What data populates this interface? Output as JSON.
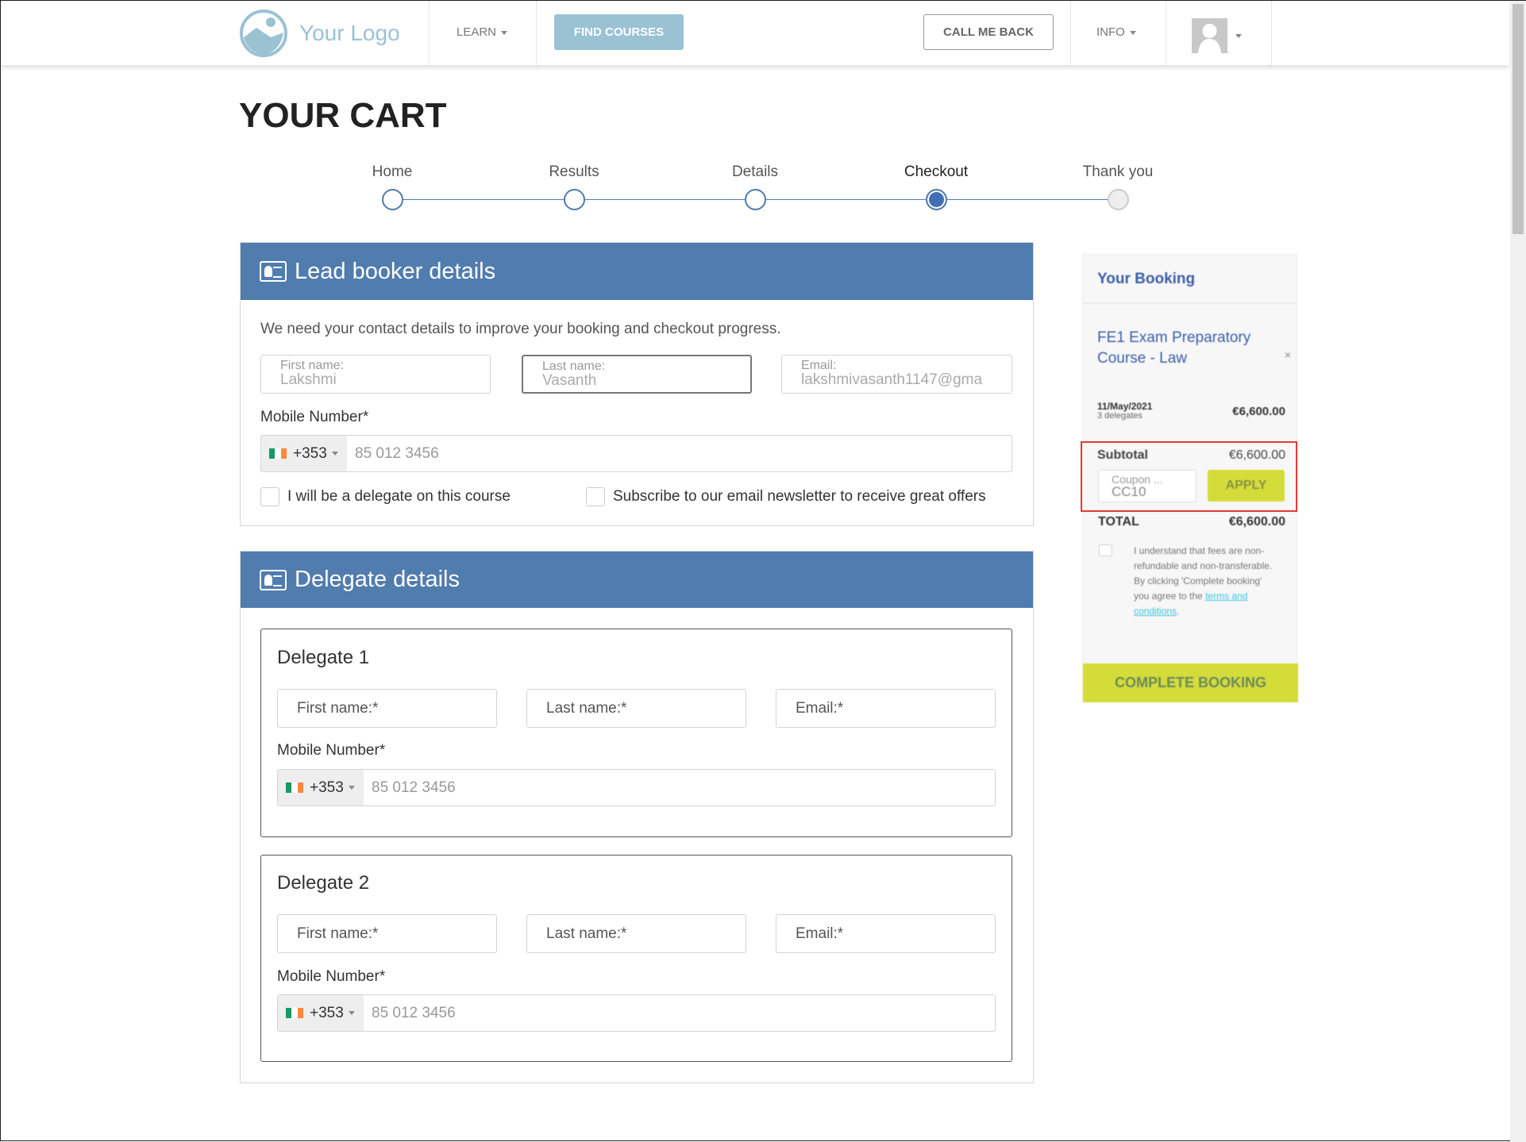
{
  "header": {
    "logo_text": "Your Logo",
    "learn": "LEARN",
    "find_courses": "FIND COURSES",
    "call_me_back": "CALL ME BACK",
    "info": "INFO"
  },
  "page_title": "YOUR CART",
  "steps": [
    {
      "label": "Home",
      "state": "done"
    },
    {
      "label": "Results",
      "state": "done"
    },
    {
      "label": "Details",
      "state": "done"
    },
    {
      "label": "Checkout",
      "state": "active"
    },
    {
      "label": "Thank you",
      "state": "pending"
    }
  ],
  "lead": {
    "title": "Lead booker details",
    "intro": "We need your contact details to improve your booking and checkout progress.",
    "first_label": "First name:",
    "first_value": "Lakshmi",
    "last_label": "Last name:",
    "last_value": "Vasanth",
    "email_label": "Email:",
    "email_value": "lakshmivasanth1147@gma",
    "mobile_label": "Mobile Number*",
    "country_code": "+353",
    "phone_placeholder": "85 012 3456",
    "delegate_check": "I will be a delegate on this course",
    "newsletter_check": "Subscribe to our email newsletter to receive great offers"
  },
  "delegates": {
    "title": "Delegate details",
    "items": [
      {
        "title": "Delegate 1",
        "first": "First name:*",
        "last": "Last name:*",
        "email": "Email:*",
        "mobile_label": "Mobile Number*",
        "country_code": "+353",
        "phone_placeholder": "85 012 3456"
      },
      {
        "title": "Delegate 2",
        "first": "First name:*",
        "last": "Last name:*",
        "email": "Email:*",
        "mobile_label": "Mobile Number*",
        "country_code": "+353",
        "phone_placeholder": "85 012 3456"
      }
    ]
  },
  "booking": {
    "title": "Your Booking",
    "course": "FE1 Exam Preparatory Course - Law",
    "remove": "×",
    "date": "11/May/2021",
    "delegates": "3 delegates",
    "price": "€6,600.00",
    "subtotal_label": "Subtotal",
    "subtotal": "€6,600.00",
    "coupon_label": "Coupon ...",
    "coupon_value": "CC10",
    "apply": "APPLY",
    "total_label": "TOTAL",
    "total": "€6,600.00",
    "terms_1": "I understand that fees are non-refundable and non-transferable.",
    "terms_2": "By clicking 'Complete booking'",
    "terms_3": "you agree to the",
    "terms_link": "terms and conditions",
    "terms_end": ".",
    "complete": "COMPLETE BOOKING"
  },
  "colors": {
    "primary": "#517cae",
    "accent": "#d4dc3a",
    "find_courses": "#9ac2d3",
    "highlight": "#e53935"
  }
}
